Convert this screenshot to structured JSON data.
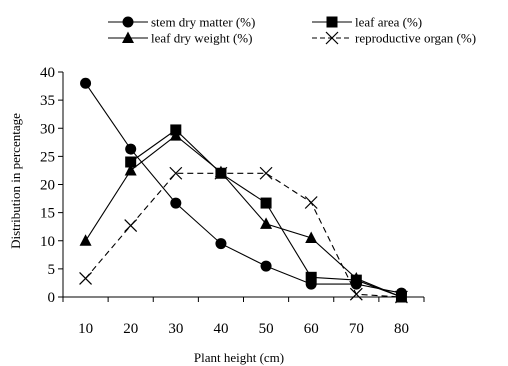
{
  "chart_data": {
    "type": "line",
    "title": "",
    "xlabel": "Plant height (cm)",
    "ylabel": "Distribution in percentage",
    "x": [
      10,
      20,
      30,
      40,
      50,
      60,
      70,
      80
    ],
    "xlim": [
      5,
      85
    ],
    "ylim": [
      0,
      40
    ],
    "yticks": [
      0,
      5,
      10,
      15,
      20,
      25,
      30,
      35,
      40
    ],
    "grid": false,
    "legend_position": "top",
    "series": [
      {
        "name": "stem dry matter (%)",
        "marker": "circle",
        "color": "#000000",
        "dash": "solid",
        "values": [
          38.0,
          26.3,
          16.7,
          9.5,
          5.5,
          2.3,
          2.3,
          0.7
        ]
      },
      {
        "name": "leaf area (%)",
        "marker": "square",
        "color": "#000000",
        "dash": "solid",
        "values": [
          null,
          24.0,
          29.7,
          22.0,
          16.7,
          3.5,
          3.0,
          0.0
        ]
      },
      {
        "name": "leaf dry weight (%)",
        "marker": "triangle",
        "color": "#000000",
        "dash": "solid",
        "values": [
          10.0,
          22.5,
          28.7,
          22.2,
          13.0,
          10.5,
          3.3,
          0.0
        ]
      },
      {
        "name": "reproductive organ (%)",
        "marker": "x",
        "color": "#000000",
        "dash": "dashed",
        "values": [
          3.3,
          12.7,
          22.0,
          22.0,
          22.0,
          16.8,
          0.5,
          0.0
        ]
      }
    ]
  }
}
